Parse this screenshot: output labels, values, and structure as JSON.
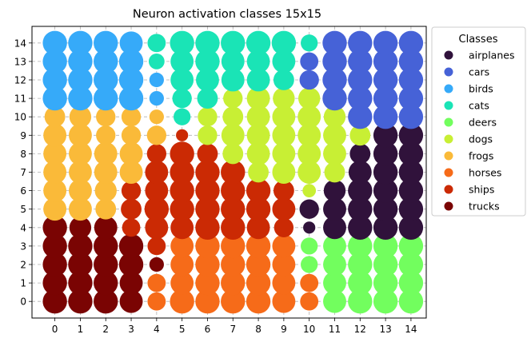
{
  "chart_data": {
    "type": "scatter",
    "title": "Neuron activation classes 15x15",
    "xlabel": "",
    "ylabel": "",
    "x_ticks": [
      "0",
      "1",
      "2",
      "3",
      "4",
      "5",
      "6",
      "7",
      "8",
      "9",
      "10",
      "11",
      "12",
      "13",
      "14"
    ],
    "y_ticks": [
      "0",
      "1",
      "2",
      "3",
      "4",
      "5",
      "6",
      "7",
      "8",
      "9",
      "10",
      "11",
      "12",
      "13",
      "14"
    ],
    "xlim": [
      -0.9,
      14.6
    ],
    "ylim": [
      -0.9,
      14.9
    ],
    "grid": true,
    "legend": {
      "title": "Classes",
      "position": "upper-right-outside"
    },
    "classes": [
      {
        "name": "airplanes",
        "color": "#30123b"
      },
      {
        "name": "cars",
        "color": "#4662d7"
      },
      {
        "name": "birds",
        "color": "#36aaf9"
      },
      {
        "name": "cats",
        "color": "#1ae4b6"
      },
      {
        "name": "deers",
        "color": "#72fe5e"
      },
      {
        "name": "dogs",
        "color": "#c8ef34"
      },
      {
        "name": "frogs",
        "color": "#faba39"
      },
      {
        "name": "horses",
        "color": "#f66b19"
      },
      {
        "name": "ships",
        "color": "#cb2a04"
      },
      {
        "name": "trucks",
        "color": "#7a0403"
      }
    ],
    "class_grid": [
      [
        9,
        9,
        9,
        9,
        7,
        7,
        7,
        7,
        7,
        7,
        7,
        4,
        4,
        4,
        4
      ],
      [
        9,
        9,
        9,
        9,
        7,
        7,
        7,
        7,
        7,
        7,
        7,
        4,
        4,
        4,
        4
      ],
      [
        9,
        9,
        9,
        9,
        9,
        7,
        7,
        7,
        7,
        7,
        4,
        4,
        4,
        4,
        4
      ],
      [
        9,
        9,
        9,
        9,
        8,
        7,
        7,
        7,
        7,
        7,
        4,
        4,
        4,
        4,
        4
      ],
      [
        9,
        9,
        9,
        8,
        8,
        8,
        8,
        8,
        8,
        8,
        0,
        0,
        0,
        0,
        0
      ],
      [
        6,
        6,
        6,
        8,
        8,
        8,
        8,
        8,
        8,
        8,
        0,
        0,
        0,
        0,
        0
      ],
      [
        6,
        6,
        6,
        8,
        8,
        8,
        8,
        8,
        8,
        8,
        5,
        0,
        0,
        0,
        0
      ],
      [
        6,
        6,
        6,
        6,
        8,
        8,
        8,
        8,
        5,
        5,
        5,
        5,
        0,
        0,
        0
      ],
      [
        6,
        6,
        6,
        6,
        8,
        8,
        8,
        5,
        5,
        5,
        5,
        5,
        0,
        0,
        0
      ],
      [
        6,
        6,
        6,
        6,
        6,
        8,
        5,
        5,
        5,
        5,
        5,
        5,
        5,
        0,
        0
      ],
      [
        6,
        6,
        6,
        6,
        6,
        3,
        5,
        5,
        5,
        5,
        5,
        5,
        1,
        1,
        1
      ],
      [
        2,
        2,
        2,
        2,
        2,
        3,
        3,
        5,
        5,
        5,
        5,
        1,
        1,
        1,
        1
      ],
      [
        2,
        2,
        2,
        2,
        2,
        3,
        3,
        3,
        3,
        3,
        1,
        1,
        1,
        1,
        1
      ],
      [
        2,
        2,
        2,
        2,
        3,
        3,
        3,
        3,
        3,
        3,
        1,
        1,
        1,
        1,
        1
      ],
      [
        2,
        2,
        2,
        2,
        3,
        3,
        3,
        3,
        3,
        3,
        3,
        1,
        1,
        1,
        1
      ]
    ],
    "activation_grid": [
      [
        1.0,
        1.0,
        1.0,
        0.95,
        0.75,
        1.0,
        1.0,
        1.0,
        1.0,
        0.95,
        0.75,
        0.95,
        1.0,
        1.0,
        1.0
      ],
      [
        1.0,
        1.0,
        1.0,
        0.95,
        0.75,
        0.95,
        1.0,
        1.0,
        1.0,
        0.95,
        0.75,
        0.95,
        1.0,
        1.0,
        1.0
      ],
      [
        1.0,
        1.0,
        1.0,
        1.0,
        0.6,
        0.95,
        1.0,
        1.0,
        1.0,
        0.95,
        0.7,
        0.95,
        1.0,
        1.0,
        1.0
      ],
      [
        1.0,
        1.0,
        1.0,
        1.0,
        0.75,
        0.95,
        1.0,
        1.0,
        1.0,
        0.95,
        0.7,
        0.95,
        1.0,
        1.0,
        1.0
      ],
      [
        1.0,
        0.9,
        0.95,
        0.75,
        0.95,
        0.95,
        1.0,
        1.0,
        0.95,
        0.8,
        0.5,
        0.95,
        1.0,
        1.0,
        1.0
      ],
      [
        0.95,
        0.95,
        0.85,
        0.85,
        1.0,
        1.0,
        1.0,
        1.0,
        1.0,
        0.95,
        0.8,
        0.95,
        1.0,
        1.0,
        1.0
      ],
      [
        0.95,
        0.95,
        0.9,
        0.8,
        0.95,
        1.0,
        1.0,
        1.0,
        1.0,
        0.85,
        0.55,
        0.9,
        1.0,
        1.0,
        1.0
      ],
      [
        0.95,
        0.95,
        0.95,
        0.95,
        0.95,
        1.0,
        1.0,
        1.0,
        0.85,
        0.95,
        0.95,
        0.85,
        0.95,
        1.0,
        1.0
      ],
      [
        0.95,
        0.95,
        0.95,
        0.95,
        0.8,
        1.0,
        0.85,
        0.85,
        0.95,
        0.95,
        0.95,
        0.95,
        0.85,
        1.0,
        1.0
      ],
      [
        0.95,
        0.95,
        0.8,
        0.8,
        0.8,
        0.5,
        0.8,
        0.95,
        0.95,
        0.95,
        0.95,
        0.95,
        0.85,
        1.0,
        1.0
      ],
      [
        0.85,
        0.9,
        0.8,
        0.8,
        0.6,
        0.7,
        0.8,
        0.85,
        0.95,
        0.95,
        0.95,
        0.9,
        1.0,
        1.0,
        1.0
      ],
      [
        1.0,
        1.0,
        1.0,
        1.0,
        0.6,
        0.8,
        0.85,
        0.8,
        0.95,
        0.9,
        0.9,
        1.0,
        1.0,
        1.0,
        1.0
      ],
      [
        1.0,
        1.0,
        1.0,
        1.0,
        0.6,
        0.95,
        0.95,
        0.95,
        0.95,
        0.85,
        0.8,
        1.0,
        1.0,
        1.0,
        1.0
      ],
      [
        1.0,
        1.0,
        1.0,
        1.0,
        0.65,
        0.95,
        1.0,
        0.95,
        0.95,
        0.95,
        0.75,
        1.0,
        1.0,
        1.0,
        1.0
      ],
      [
        1.0,
        1.0,
        1.0,
        0.95,
        0.75,
        1.0,
        1.0,
        1.0,
        1.0,
        1.0,
        0.7,
        1.0,
        1.0,
        1.0,
        1.0
      ]
    ]
  }
}
